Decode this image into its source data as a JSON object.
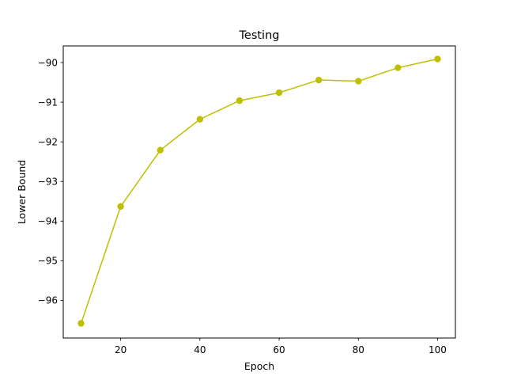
{
  "chart_data": {
    "type": "line",
    "title": "Testing",
    "xlabel": "Epoch",
    "ylabel": "Lower Bound",
    "x": [
      10,
      20,
      30,
      40,
      50,
      60,
      70,
      80,
      90,
      100
    ],
    "series": [
      {
        "values": [
          -96.58,
          -93.63,
          -92.21,
          -91.43,
          -90.96,
          -90.76,
          -90.44,
          -90.47,
          -90.13,
          -89.91
        ],
        "color": "#bfbf00",
        "marker": "circle"
      }
    ],
    "xlim": [
      5.5,
      104.5
    ],
    "ylim": [
      -96.95,
      -89.58
    ],
    "xticks": [
      20,
      40,
      60,
      80,
      100
    ],
    "xtick_labels": [
      "20",
      "40",
      "60",
      "80",
      "100"
    ],
    "yticks": [
      -96,
      -95,
      -94,
      -93,
      -92,
      -91,
      -90
    ],
    "ytick_labels": [
      "−96",
      "−95",
      "−94",
      "−93",
      "−92",
      "−91",
      "−90"
    ],
    "grid": false,
    "legend": "none"
  }
}
